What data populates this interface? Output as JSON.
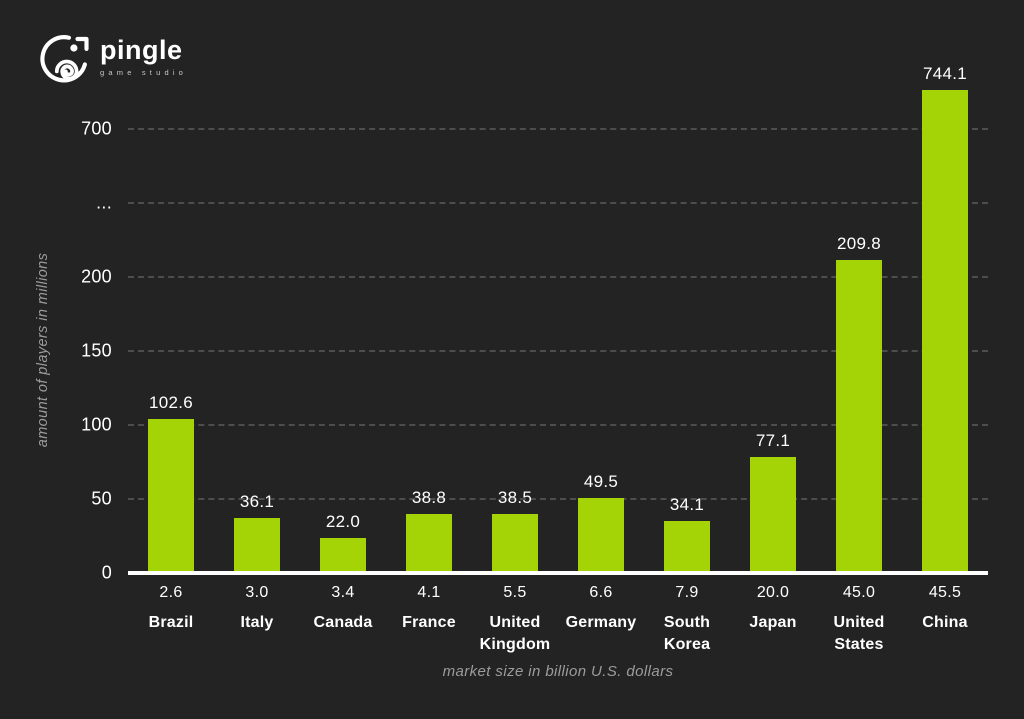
{
  "logo": {
    "brand": "pingle",
    "subtitle": "game studio"
  },
  "chart_data": {
    "type": "bar",
    "title": "",
    "categories": [
      "Brazil",
      "Italy",
      "Canada",
      "France",
      "United Kingdom",
      "Germany",
      "South Korea",
      "Japan",
      "United States",
      "China"
    ],
    "values": [
      102.6,
      36.1,
      22.0,
      38.8,
      38.5,
      49.5,
      34.1,
      77.1,
      209.8,
      744.1
    ],
    "value_labels": [
      "102.6",
      "36.1",
      "22.0",
      "38.8",
      "38.5",
      "49.5",
      "34.1",
      "77.1",
      "209.8",
      "744.1"
    ],
    "x_values": [
      2.6,
      3.0,
      3.4,
      4.1,
      5.5,
      6.6,
      7.9,
      20.0,
      45.0,
      45.5
    ],
    "x_value_labels": [
      "2.6",
      "3.0",
      "3.4",
      "4.1",
      "5.5",
      "6.6",
      "7.9",
      "20.0",
      "45.0",
      "45.5"
    ],
    "xlabel": "market size in billion U.S. dollars",
    "ylabel": "amount of players in millions",
    "y_ticks": [
      "0",
      "50",
      "100",
      "150",
      "200",
      "...",
      "700"
    ],
    "axis_break_between": [
      200,
      700
    ],
    "ylim": [
      0,
      750
    ],
    "grid": "dashed horizontal",
    "legend": "none",
    "colors": {
      "bar": "#a4d405",
      "background": "#232323",
      "gridline": "#4d4d4d",
      "text_primary": "#ffffff",
      "text_secondary": "#9c9c9c"
    }
  }
}
